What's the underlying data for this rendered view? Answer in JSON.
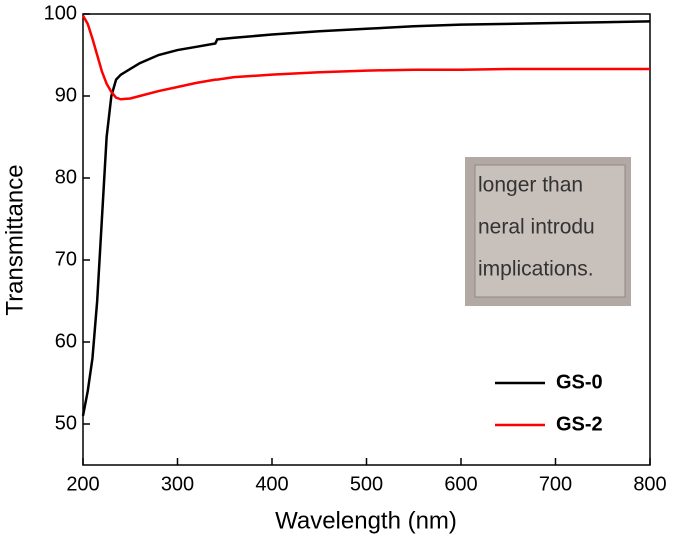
{
  "chart_data": {
    "type": "line",
    "x_label": "Wavelength (nm)",
    "y_label": "Transmittance",
    "x": [
      200,
      205,
      210,
      215,
      220,
      225,
      230,
      235,
      240,
      250,
      260,
      280,
      300,
      320,
      340,
      342,
      360,
      400,
      450,
      500,
      550,
      600,
      650,
      700,
      750,
      800
    ],
    "series": [
      {
        "name": "GS-0",
        "color": "#000000",
        "values": [
          51,
          54,
          58,
          65,
          75,
          85,
          90,
          92,
          92.6,
          93.3,
          94,
          95,
          95.6,
          96,
          96.4,
          96.9,
          97.1,
          97.5,
          97.9,
          98.2,
          98.5,
          98.7,
          98.8,
          98.9,
          99,
          99.1
        ]
      },
      {
        "name": "GS-2",
        "color": "#ff0000",
        "values": [
          99.8,
          98.8,
          97,
          95,
          93,
          91.5,
          90.5,
          89.8,
          89.6,
          89.7,
          90,
          90.6,
          91.1,
          91.6,
          92,
          92,
          92.3,
          92.6,
          92.9,
          93.1,
          93.2,
          93.2,
          93.3,
          93.3,
          93.3,
          93.3
        ]
      }
    ],
    "xlim": [
      200,
      800
    ],
    "xticks": [
      200,
      300,
      400,
      500,
      600,
      700,
      800
    ],
    "ylim": [
      45,
      100
    ],
    "yticks": [
      50,
      60,
      70,
      80,
      90,
      100
    ],
    "legend": "lower right",
    "annotations": [
      "longer than",
      "neral introdu",
      "implications."
    ]
  }
}
